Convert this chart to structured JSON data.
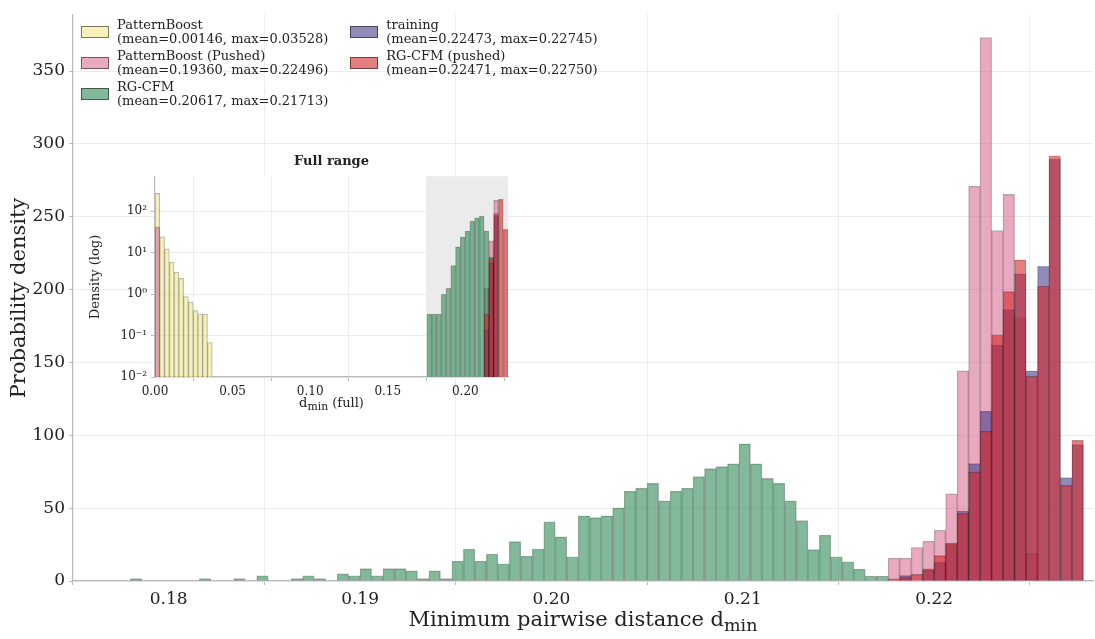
{
  "chart_data": [
    {
      "type": "histogram",
      "xlabel": "Minimum pairwise distance d$_{min}$",
      "ylabel": "Probability density",
      "bins": [
        0.178,
        0.1786,
        0.1792,
        0.1798,
        0.1804,
        0.181,
        0.1816,
        0.1822,
        0.1828,
        0.1834,
        0.184,
        0.1846,
        0.1852,
        0.1858,
        0.1864,
        0.187,
        0.1876,
        0.1882,
        0.1888,
        0.1894,
        0.19,
        0.1906,
        0.1912,
        0.1918,
        0.1924,
        0.193,
        0.1936,
        0.1942,
        0.1948,
        0.1954,
        0.196,
        0.1966,
        0.1972,
        0.1978,
        0.1984,
        0.199,
        0.1996,
        0.2002,
        0.2008,
        0.2014,
        0.202,
        0.2026,
        0.2032,
        0.2038,
        0.2044,
        0.205,
        0.2056,
        0.2062,
        0.2068,
        0.2074,
        0.208,
        0.2086,
        0.2092,
        0.2098,
        0.2104,
        0.211,
        0.2116,
        0.2122,
        0.2128,
        0.2134,
        0.214,
        0.2146,
        0.2152,
        0.2158,
        0.2164,
        0.217,
        0.2176,
        0.2182,
        0.2188,
        0.2194,
        0.22,
        0.2206,
        0.2212,
        0.2218,
        0.2224,
        0.223,
        0.2236,
        0.2242,
        0.2248,
        0.2254,
        0.226,
        0.2266,
        0.2272,
        0.2278
      ],
      "series": [
        {
          "name": "PatternBoost\n(mean=0.00146, max=0.03528)",
          "color": "#f0e68c",
          "values": [
            0,
            0,
            0,
            0,
            0,
            0,
            0,
            0,
            0,
            0,
            0,
            0,
            0,
            0,
            0,
            0,
            0,
            0,
            0,
            0,
            0,
            0,
            0,
            0,
            0,
            0,
            0,
            0,
            0,
            0,
            0,
            0,
            0,
            0,
            0,
            0,
            0,
            0,
            0,
            0,
            0,
            0,
            0,
            0,
            0,
            0,
            0,
            0,
            0,
            0,
            0,
            0,
            0,
            0,
            0,
            0,
            0,
            0,
            0,
            0,
            0,
            0,
            0,
            0,
            0,
            0,
            0,
            0,
            0,
            0,
            0,
            0,
            0,
            0,
            0,
            0,
            0,
            0,
            0,
            0,
            0,
            0,
            0
          ]
        },
        {
          "name": "PatternBoost (Pushed)\n(mean=0.19360, max=0.22496)",
          "color": "#db7093",
          "values": [
            null,
            null,
            null,
            null,
            null,
            null,
            null,
            null,
            null,
            null,
            null,
            null,
            null,
            null,
            null,
            null,
            null,
            null,
            null,
            null,
            null,
            null,
            null,
            null,
            null,
            null,
            null,
            null,
            null,
            null,
            null,
            null,
            null,
            null,
            null,
            null,
            null,
            null,
            null,
            null,
            null,
            null,
            null,
            null,
            null,
            null,
            null,
            null,
            null,
            null,
            null,
            null,
            null,
            null,
            null,
            null,
            null,
            null,
            null,
            null,
            null,
            null,
            null,
            null,
            null,
            null,
            15.7,
            15.7,
            23,
            27.2,
            34.8,
            59.8,
            144.2,
            271,
            373,
            240.5,
            265.3,
            180.7,
            19,
            null,
            null,
            null,
            null
          ]
        },
        {
          "name": "RG-CFM\n(mean=0.20617, max=0.21713)",
          "color": "#2e8b57",
          "values": [
            1.6,
            null,
            null,
            null,
            null,
            null,
            1.6,
            null,
            null,
            1.6,
            null,
            3.6,
            null,
            null,
            1.6,
            3.6,
            1.6,
            null,
            4.9,
            3.6,
            8.5,
            3.6,
            8.5,
            8.5,
            6.9,
            1.6,
            6.9,
            1.6,
            13.6,
            21.9,
            13.6,
            18.5,
            11.8,
            27,
            17,
            21.9,
            40.6,
            30.4,
            16.6,
            44.8,
            43.5,
            44.8,
            50.2,
            61.7,
            63.7,
            67,
            55,
            61.7,
            63.7,
            71.7,
            77.1,
            78.5,
            80.5,
            94.2,
            80.5,
            70.4,
            67,
            55,
            41.5,
            21.5,
            31.4,
            16.6,
            13.2,
            8.1,
            3.4,
            3.4,
            null,
            null,
            null,
            null,
            null,
            null,
            null,
            null,
            null,
            null,
            null,
            null,
            null,
            null,
            null,
            null,
            null
          ]
        },
        {
          "name": "training\n(mean=0.22473, max=0.22745)",
          "color": "#483d8b",
          "values": [
            null,
            null,
            null,
            null,
            null,
            null,
            null,
            null,
            null,
            null,
            null,
            null,
            null,
            null,
            null,
            null,
            null,
            null,
            null,
            null,
            null,
            null,
            null,
            null,
            null,
            null,
            null,
            null,
            null,
            null,
            null,
            null,
            null,
            null,
            null,
            null,
            null,
            null,
            null,
            null,
            null,
            null,
            null,
            null,
            null,
            null,
            null,
            null,
            null,
            null,
            null,
            null,
            null,
            null,
            null,
            null,
            null,
            null,
            null,
            null,
            null,
            null,
            null,
            null,
            null,
            null,
            null,
            3.8,
            null,
            7.4,
            13,
            25.4,
            48,
            80.6,
            116.5,
            162,
            186.3,
            210.8,
            144.2,
            216,
            289.6,
            71,
            93.7
          ]
        },
        {
          "name": "RG-CFM (pushed)\n(mean=0.22471, max=0.22750)",
          "color": "#d62728",
          "values": [
            null,
            null,
            null,
            null,
            null,
            null,
            null,
            null,
            null,
            null,
            null,
            null,
            null,
            null,
            null,
            null,
            null,
            null,
            null,
            null,
            null,
            null,
            null,
            null,
            null,
            null,
            null,
            null,
            null,
            null,
            null,
            null,
            null,
            null,
            null,
            null,
            null,
            null,
            null,
            null,
            null,
            null,
            null,
            null,
            null,
            null,
            null,
            null,
            null,
            null,
            null,
            null,
            null,
            null,
            null,
            null,
            null,
            null,
            null,
            null,
            null,
            null,
            null,
            null,
            null,
            null,
            1.5,
            2.3,
            4.5,
            8.3,
            17.4,
            26.1,
            46.2,
            74.8,
            102.7,
            169,
            198.6,
            220.5,
            140.6,
            202.4,
            291.8,
            65.6,
            96.6
          ]
        }
      ],
      "xlim": [
        0.175,
        0.2283
      ],
      "xticks": [
        0.18,
        0.19,
        {
          "value": 0.2,
          "label": "0.20"
        },
        0.21,
        0.22
      ],
      "ylim": [
        0,
        389
      ],
      "yticks": [
        0,
        50,
        100,
        150,
        200,
        250,
        300,
        350
      ],
      "grid": true,
      "legend": "top left"
    },
    {
      "type": "histogram",
      "title": "Full range",
      "xlabel": "d$_{min}$ (full)",
      "ylabel": "Density (log)",
      "bins": [
        0,
        0.00307,
        0.00615,
        0.00922,
        0.0123,
        0.01537,
        0.01845,
        0.02152,
        0.02459,
        0.02767,
        0.03074,
        0.03382,
        0.03689,
        0.03997,
        0.04304,
        0.04611,
        0.04919,
        0.05226,
        0.05534,
        0.05841,
        0.06149,
        0.06456,
        0.06764,
        0.07071,
        0.07378,
        0.07686,
        0.07993,
        0.08301,
        0.08608,
        0.08916,
        0.09223,
        0.0953,
        0.09838,
        0.10145,
        0.10453,
        0.1076,
        0.11068,
        0.11375,
        0.11682,
        0.1199,
        0.12297,
        0.12605,
        0.12912,
        0.1322,
        0.13527,
        0.13834,
        0.14142,
        0.14449,
        0.14757,
        0.15064,
        0.15372,
        0.15679,
        0.15986,
        0.16294,
        0.16601,
        0.16909,
        0.17216,
        0.17524,
        0.17831,
        0.18139,
        0.18446,
        0.18753,
        0.19061,
        0.19368,
        0.19676,
        0.19983,
        0.20291,
        0.20598,
        0.20905,
        0.21213,
        0.2152,
        0.21828,
        0.22135,
        0.22443,
        0.2275
      ],
      "series": [
        {
          "color": "#f0e68c",
          "values": [
            270,
            24,
            12.3,
            5.9,
            3.4,
            2.4,
            0.87,
            0.64,
            0.4,
            0.33,
            0.33,
            0.068,
            null,
            null,
            null,
            null,
            null,
            null,
            null,
            null,
            null,
            null,
            null,
            null,
            null,
            null,
            null,
            null,
            null,
            null,
            null,
            null,
            null,
            null,
            null,
            null,
            null,
            null,
            null,
            null,
            null,
            null,
            null,
            null,
            null,
            null,
            null,
            null,
            null,
            null,
            null,
            null,
            null,
            null,
            null,
            null,
            null,
            null,
            null,
            null,
            null,
            null,
            null,
            null,
            null,
            null,
            null,
            null,
            null,
            null,
            null,
            null,
            null,
            null
          ]
        },
        {
          "color": "#db7093",
          "values": [
            41.6,
            null,
            null,
            null,
            null,
            null,
            null,
            null,
            null,
            null,
            null,
            null,
            null,
            null,
            null,
            null,
            null,
            null,
            null,
            null,
            null,
            null,
            null,
            null,
            null,
            null,
            null,
            null,
            null,
            null,
            null,
            null,
            null,
            null,
            null,
            null,
            null,
            null,
            null,
            null,
            null,
            null,
            null,
            null,
            null,
            null,
            null,
            null,
            null,
            null,
            null,
            null,
            null,
            null,
            null,
            null,
            null,
            null,
            null,
            null,
            null,
            null,
            null,
            null,
            null,
            null,
            null,
            null,
            null,
            1.38,
            19.4,
            182,
            null,
            null
          ]
        },
        {
          "color": "#2e8b57",
          "values": [
            null,
            null,
            null,
            null,
            null,
            null,
            null,
            null,
            null,
            null,
            null,
            null,
            null,
            null,
            null,
            null,
            null,
            null,
            null,
            null,
            null,
            null,
            null,
            null,
            null,
            null,
            null,
            null,
            null,
            null,
            null,
            null,
            null,
            null,
            null,
            null,
            null,
            null,
            null,
            null,
            null,
            null,
            null,
            null,
            null,
            null,
            null,
            null,
            null,
            null,
            null,
            null,
            null,
            null,
            null,
            null,
            null,
            0.33,
            0.33,
            0.33,
            0.99,
            1.38,
            4.9,
            13.9,
            24.1,
            33.4,
            57.8,
            69.3,
            76,
            33.4,
            7.8,
            null,
            null,
            null
          ]
        },
        {
          "color": "#483d8b",
          "values": [
            null,
            null,
            null,
            null,
            null,
            null,
            null,
            null,
            null,
            null,
            null,
            null,
            null,
            null,
            null,
            null,
            null,
            null,
            null,
            null,
            null,
            null,
            null,
            null,
            null,
            null,
            null,
            null,
            null,
            null,
            null,
            null,
            null,
            null,
            null,
            null,
            null,
            null,
            null,
            null,
            null,
            null,
            null,
            null,
            null,
            null,
            null,
            null,
            null,
            null,
            null,
            null,
            null,
            null,
            null,
            null,
            null,
            null,
            null,
            null,
            null,
            null,
            null,
            null,
            null,
            null,
            null,
            null,
            null,
            0.14,
            5.7,
            78,
            null,
            null
          ]
        },
        {
          "color": "#d62728",
          "values": [
            null,
            null,
            null,
            null,
            null,
            null,
            null,
            null,
            null,
            null,
            null,
            null,
            null,
            null,
            null,
            null,
            null,
            null,
            null,
            null,
            null,
            null,
            null,
            null,
            null,
            null,
            null,
            null,
            null,
            null,
            null,
            null,
            null,
            null,
            null,
            null,
            null,
            null,
            null,
            null,
            null,
            null,
            null,
            null,
            null,
            null,
            null,
            null,
            null,
            null,
            null,
            null,
            null,
            null,
            null,
            null,
            null,
            null,
            null,
            null,
            null,
            null,
            null,
            null,
            null,
            null,
            null,
            null,
            null,
            0.33,
            7.1,
            88,
            196,
            36.6
          ]
        }
      ],
      "xlim": [
        0,
        0.2275
      ],
      "xticks": [
        {
          "value": 0,
          "label": "0.00"
        },
        0.05,
        {
          "value": 0.1,
          "label": "0.10"
        },
        0.15,
        {
          "value": 0.2,
          "label": "0.20"
        }
      ],
      "ylim": [
        0.01,
        700
      ],
      "yticks": [
        {
          "value": 0.01,
          "label": "10⁻²"
        },
        {
          "value": 0.1,
          "label": "10⁻¹"
        },
        {
          "value": 1,
          "label": "10⁰"
        },
        {
          "value": 10,
          "label": "10¹"
        },
        {
          "value": 100,
          "label": "10²"
        }
      ],
      "log": "y",
      "grid": true,
      "bands": [
        {
          "axis": "x",
          "from": 0.175,
          "to": 0.2275,
          "color": "#ebebeb"
        }
      ]
    }
  ]
}
